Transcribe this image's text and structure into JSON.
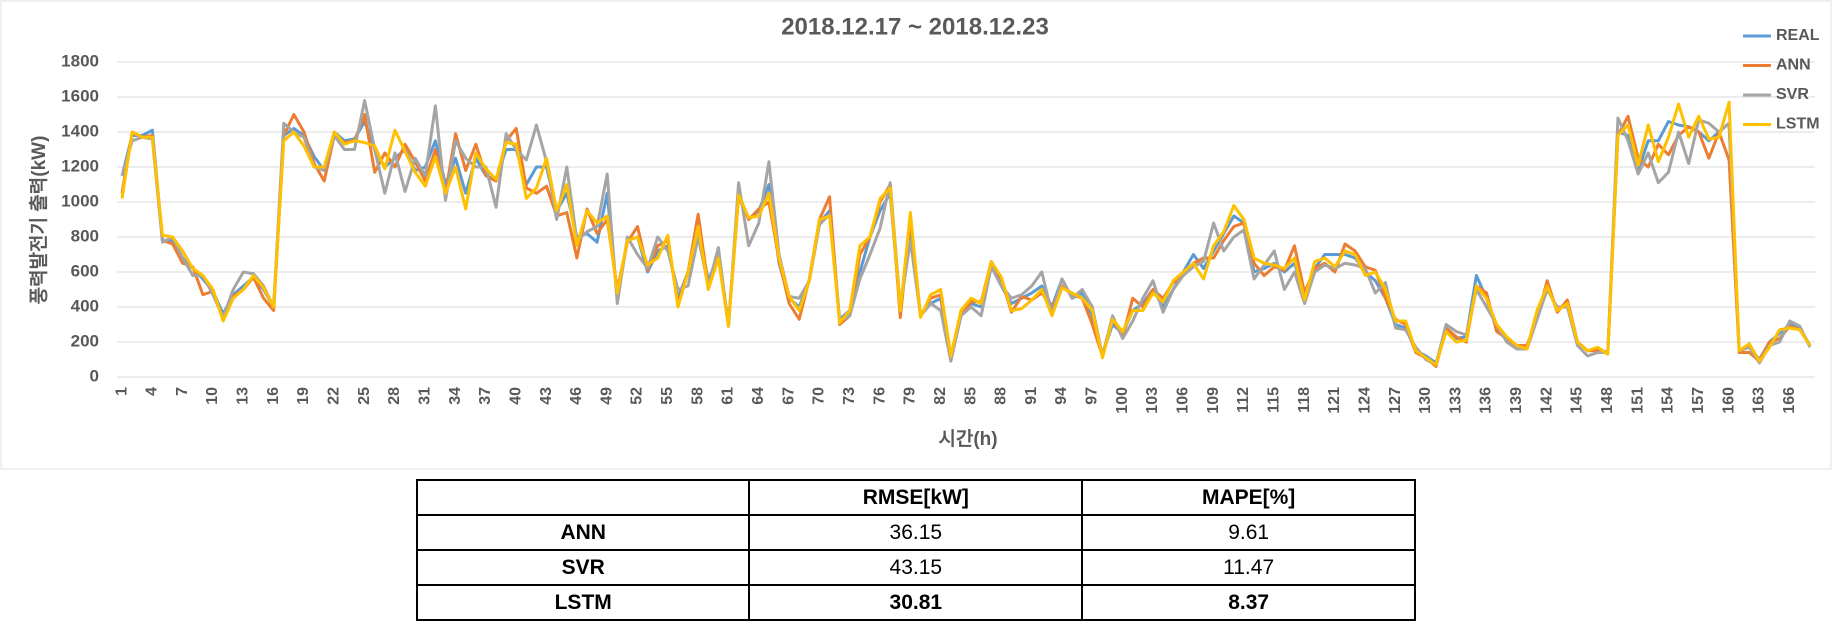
{
  "chart_data": {
    "type": "line",
    "title": "2018.12.17 ~ 2018.12.23",
    "y_label": "풍력발전기 출력(kW)",
    "x_label": "시간(h)",
    "categories": [
      1,
      null,
      null,
      4,
      null,
      null,
      7,
      null,
      null,
      10,
      null,
      null,
      13,
      null,
      null,
      16,
      null,
      null,
      19,
      null,
      null,
      22,
      null,
      null,
      25,
      null,
      null,
      28,
      null,
      null,
      31,
      null,
      null,
      34,
      null,
      null,
      37,
      null,
      null,
      40,
      null,
      null,
      43,
      null,
      null,
      46,
      null,
      null,
      49,
      null,
      null,
      52,
      null,
      null,
      55,
      null,
      null,
      58,
      null,
      null,
      61,
      null,
      null,
      64,
      null,
      null,
      67,
      null,
      null,
      70,
      null,
      null,
      73,
      null,
      null,
      76,
      null,
      null,
      79,
      null,
      null,
      82,
      null,
      null,
      85,
      null,
      null,
      88,
      null,
      null,
      91,
      null,
      null,
      94,
      null,
      null,
      97,
      null,
      null,
      100,
      null,
      null,
      103,
      null,
      null,
      106,
      null,
      null,
      109,
      null,
      null,
      112,
      null,
      null,
      115,
      null,
      null,
      118,
      null,
      null,
      121,
      null,
      null,
      124,
      null,
      null,
      127,
      null,
      null,
      130,
      null,
      null,
      133,
      null,
      null,
      136,
      null,
      null,
      139,
      null,
      null,
      142,
      null,
      null,
      145,
      null,
      null,
      148,
      null,
      null,
      151,
      null,
      null,
      154,
      null,
      null,
      157,
      null,
      null,
      160,
      null,
      null,
      163,
      null,
      null,
      166,
      null,
      null
    ],
    "ylim": [
      0,
      1800
    ],
    "yticks": [
      0,
      200,
      400,
      600,
      800,
      1000,
      1200,
      1400,
      1600,
      1800
    ],
    "grid": true,
    "legend": "top-right",
    "series": [
      {
        "name": "REAL",
        "color": "#5b9bd5",
        "values": [
          1150,
          1380,
          1380,
          1410,
          780,
          780,
          680,
          620,
          560,
          490,
          360,
          470,
          520,
          570,
          500,
          400,
          1380,
          1420,
          1380,
          1260,
          1180,
          1400,
          1350,
          1360,
          1460,
          1300,
          1200,
          1250,
          1300,
          1180,
          1200,
          1350,
          1100,
          1250,
          1050,
          1250,
          1150,
          1130,
          1300,
          1300,
          1100,
          1200,
          1200,
          950,
          1050,
          800,
          820,
          770,
          1050,
          450,
          780,
          800,
          600,
          720,
          750,
          450,
          600,
          850,
          550,
          700,
          300,
          1050,
          900,
          950,
          1100,
          650,
          450,
          400,
          550,
          880,
          950,
          330,
          380,
          600,
          800,
          950,
          1050,
          380,
          850,
          350,
          420,
          450,
          100,
          350,
          420,
          400,
          650,
          520,
          420,
          450,
          480,
          520,
          400,
          560,
          450,
          480,
          350,
          130,
          300,
          250,
          380,
          420,
          500,
          400,
          500,
          600,
          700,
          620,
          720,
          820,
          920,
          880,
          600,
          620,
          650,
          600,
          650,
          480,
          620,
          700,
          700,
          700,
          680,
          600,
          550,
          450,
          300,
          280,
          150,
          120,
          80,
          260,
          220,
          230,
          580,
          450,
          280,
          220,
          180,
          170,
          350,
          520,
          380,
          420,
          200,
          150,
          160,
          140,
          1400,
          1380,
          1180,
          1350,
          1350,
          1460,
          1440,
          1430,
          1400,
          1350,
          1400,
          1450,
          150,
          170,
          100,
          200,
          250,
          300,
          280,
          180
        ]
      },
      {
        "name": "ANN",
        "color": "#ed7d31",
        "values": [
          1050,
          1400,
          1370,
          1380,
          780,
          760,
          650,
          630,
          470,
          490,
          330,
          460,
          500,
          570,
          450,
          380,
          1380,
          1500,
          1400,
          1220,
          1120,
          1380,
          1340,
          1350,
          1500,
          1170,
          1280,
          1200,
          1330,
          1230,
          1120,
          1300,
          1050,
          1390,
          1180,
          1330,
          1150,
          1120,
          1350,
          1420,
          1080,
          1050,
          1090,
          920,
          940,
          680,
          960,
          820,
          900,
          500,
          770,
          860,
          610,
          750,
          780,
          420,
          600,
          930,
          520,
          700,
          300,
          1030,
          900,
          960,
          1000,
          670,
          420,
          330,
          560,
          900,
          1030,
          300,
          350,
          700,
          800,
          1000,
          1100,
          340,
          900,
          350,
          450,
          470,
          120,
          350,
          430,
          430,
          660,
          560,
          370,
          460,
          440,
          480,
          400,
          520,
          470,
          450,
          300,
          120,
          330,
          230,
          450,
          400,
          500,
          450,
          540,
          580,
          650,
          680,
          680,
          780,
          860,
          880,
          650,
          580,
          630,
          610,
          750,
          480,
          620,
          650,
          600,
          760,
          720,
          630,
          610,
          450,
          330,
          300,
          140,
          110,
          60,
          280,
          230,
          200,
          520,
          480,
          260,
          220,
          180,
          180,
          330,
          550,
          370,
          440,
          200,
          150,
          150,
          140,
          1380,
          1490,
          1250,
          1200,
          1330,
          1270,
          1380,
          1430,
          1400,
          1250,
          1400,
          1240,
          140,
          140,
          90,
          200,
          220,
          290,
          270,
          180
        ]
      },
      {
        "name": "SVR",
        "color": "#a5a5a5",
        "values": [
          1150,
          1350,
          1370,
          1360,
          770,
          800,
          680,
          580,
          580,
          470,
          340,
          500,
          600,
          590,
          520,
          400,
          1450,
          1400,
          1370,
          1200,
          1180,
          1380,
          1300,
          1300,
          1580,
          1300,
          1050,
          1280,
          1060,
          1250,
          1150,
          1550,
          1010,
          1350,
          1250,
          1200,
          1200,
          970,
          1390,
          1300,
          1240,
          1440,
          1230,
          900,
          1200,
          780,
          830,
          860,
          1160,
          420,
          800,
          700,
          620,
          800,
          720,
          500,
          520,
          800,
          520,
          740,
          290,
          1110,
          750,
          880,
          1230,
          700,
          460,
          450,
          550,
          870,
          930,
          320,
          350,
          560,
          700,
          850,
          1110,
          400,
          780,
          350,
          420,
          380,
          90,
          350,
          400,
          350,
          630,
          520,
          450,
          470,
          520,
          600,
          360,
          560,
          450,
          500,
          400,
          120,
          350,
          220,
          320,
          450,
          550,
          370,
          500,
          580,
          630,
          660,
          880,
          720,
          800,
          840,
          560,
          640,
          720,
          500,
          600,
          420,
          600,
          640,
          620,
          650,
          640,
          620,
          480,
          540,
          280,
          270,
          170,
          100,
          70,
          300,
          260,
          240,
          500,
          400,
          300,
          200,
          160,
          160,
          330,
          500,
          400,
          400,
          180,
          120,
          140,
          140,
          1480,
          1350,
          1160,
          1280,
          1110,
          1170,
          1400,
          1220,
          1470,
          1450,
          1400,
          1450,
          150,
          170,
          80,
          180,
          200,
          320,
          290,
          170
        ]
      },
      {
        "name": "LSTM",
        "color": "#ffc000",
        "values": [
          1020,
          1400,
          1370,
          1370,
          810,
          800,
          720,
          620,
          580,
          500,
          320,
          450,
          500,
          580,
          510,
          400,
          1350,
          1400,
          1320,
          1200,
          1200,
          1400,
          1330,
          1350,
          1340,
          1320,
          1190,
          1410,
          1290,
          1170,
          1090,
          1260,
          1050,
          1200,
          960,
          1280,
          1190,
          1130,
          1340,
          1330,
          1020,
          1080,
          1250,
          950,
          1100,
          750,
          950,
          880,
          920,
          480,
          780,
          800,
          640,
          680,
          810,
          400,
          600,
          860,
          500,
          680,
          290,
          1040,
          910,
          920,
          1050,
          680,
          460,
          380,
          550,
          900,
          920,
          310,
          380,
          750,
          800,
          1020,
          1080,
          380,
          940,
          340,
          470,
          500,
          120,
          380,
          450,
          420,
          660,
          570,
          380,
          390,
          440,
          500,
          350,
          510,
          480,
          450,
          380,
          110,
          330,
          260,
          380,
          380,
          480,
          430,
          550,
          600,
          650,
          560,
          750,
          830,
          980,
          900,
          680,
          650,
          640,
          620,
          680,
          440,
          660,
          680,
          630,
          720,
          700,
          580,
          600,
          500,
          320,
          320,
          150,
          110,
          70,
          260,
          200,
          210,
          520,
          450,
          300,
          230,
          180,
          160,
          380,
          520,
          380,
          420,
          200,
          150,
          170,
          130,
          1380,
          1440,
          1210,
          1440,
          1230,
          1370,
          1560,
          1370,
          1490,
          1360,
          1370,
          1570,
          150,
          190,
          90,
          170,
          270,
          280,
          270,
          180
        ]
      }
    ]
  },
  "table": {
    "columns": [
      "RMSE[kW]",
      "MAPE[%]"
    ],
    "rows": [
      {
        "label": "ANN",
        "cells": [
          "36.15",
          "9.61"
        ]
      },
      {
        "label": "SVR",
        "cells": [
          "43.15",
          "11.47"
        ]
      },
      {
        "label": "LSTM",
        "cells": [
          "30.81",
          "8.37"
        ],
        "bold": true
      }
    ]
  }
}
